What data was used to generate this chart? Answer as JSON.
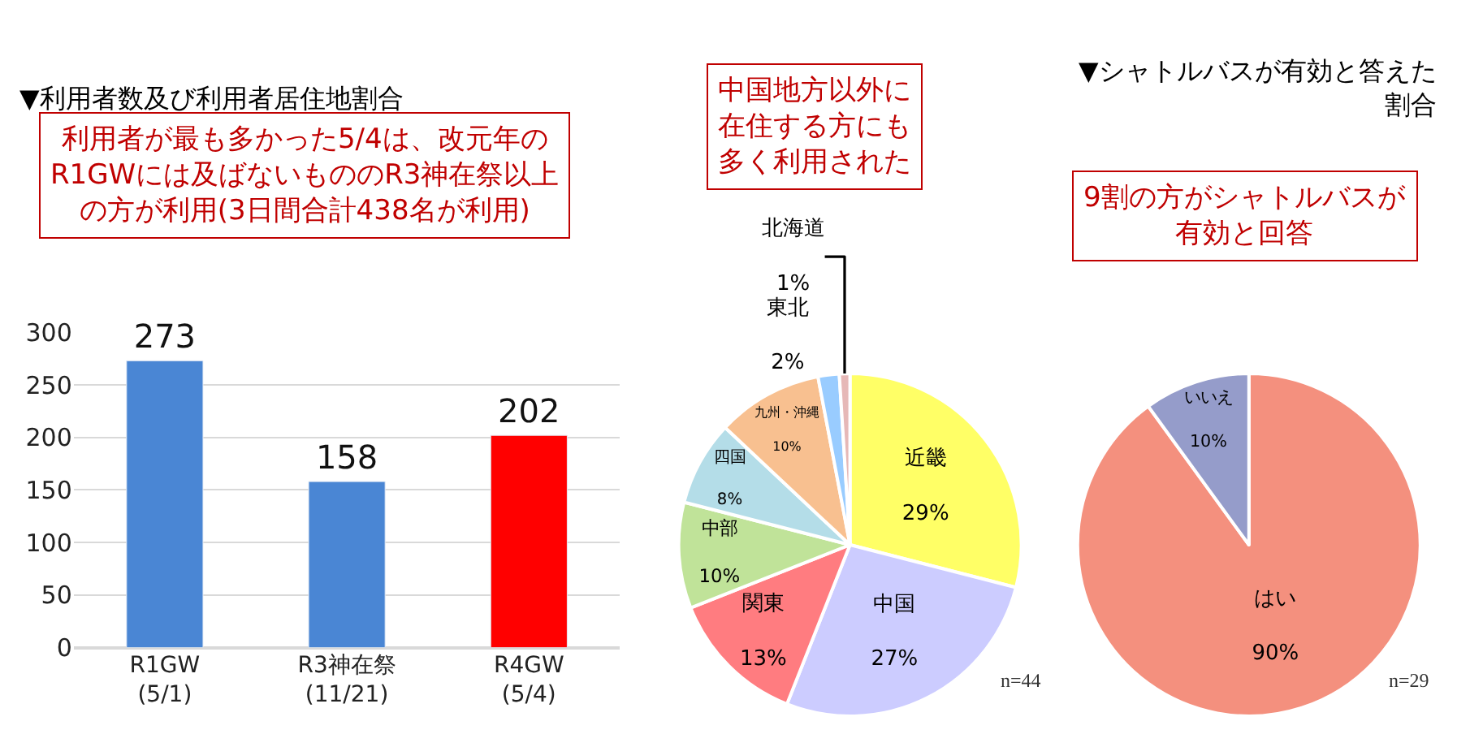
{
  "chart_data": [
    {
      "type": "bar",
      "title": "▼利用者数及び利用者居住地割合",
      "categories": [
        "R1GW\n(5/1)",
        "R3神在祭\n(11/21)",
        "R4GW\n(5/4)"
      ],
      "values": [
        273,
        158,
        202
      ],
      "colors": [
        "#4a86d4",
        "#4a86d4",
        "#ff0000"
      ],
      "ylim": [
        0,
        300
      ],
      "yticks": [
        0,
        50,
        100,
        150,
        200,
        250,
        300
      ],
      "grid": "y",
      "data_labels": true,
      "legend": false,
      "annotations": [
        "利用者が最も多かった5/4は、改元年のR1GWには及ばないもののR3神在祭以上の方が利用(3日間合計438名が利用)"
      ]
    },
    {
      "type": "pie",
      "categories": [
        "近畿",
        "中国",
        "関東",
        "中部",
        "四国",
        "九州・沖縄",
        "東北",
        "北海道"
      ],
      "values": [
        29,
        27,
        13,
        10,
        8,
        10,
        2,
        1
      ],
      "value_labels": [
        "29%",
        "27%",
        "13%",
        "10%",
        "8%",
        "10%",
        "2%",
        "1%"
      ],
      "colors": [
        "#ffff66",
        "#ccccff",
        "#ff7c80",
        "#c0e399",
        "#b4dde8",
        "#f8c090",
        "#99ccff",
        "#e6b8b7"
      ],
      "legend": false,
      "annotations": [
        "中国地方以外に在住する方にも多く利用された",
        "n=44"
      ]
    },
    {
      "type": "pie",
      "title": "▼シャトルバスが有効と答えた割合",
      "categories": [
        "はい",
        "いいえ"
      ],
      "values": [
        90,
        10
      ],
      "value_labels": [
        "90%",
        "10%"
      ],
      "colors": [
        "#f4907e",
        "#959cca"
      ],
      "legend": false,
      "annotations": [
        "9割の方がシャトルバスが有効と回答",
        "n=29"
      ]
    }
  ]
}
